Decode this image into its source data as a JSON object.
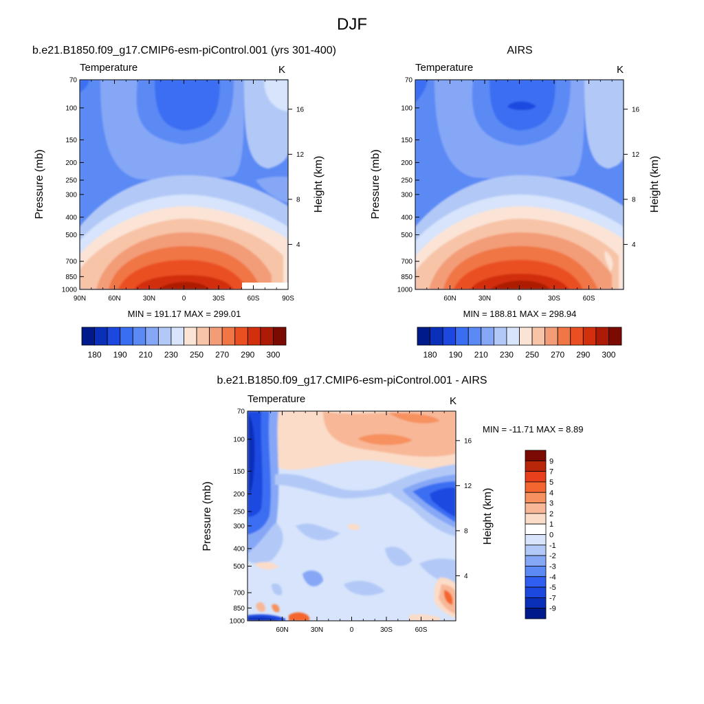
{
  "figure": {
    "title": "DJF"
  },
  "panels": [
    {
      "id": "model",
      "title": "b.e21.B1850.f09_g17.CMIP6-esm-piControl.001 (yrs 301-400)",
      "left_label": "Temperature",
      "right_label": "K",
      "ylabel_left": "Pressure (mb)",
      "ylabel_right": "Height (km)",
      "stats": "MIN = 191.17  MAX = 299.01"
    },
    {
      "id": "obs",
      "title": "AIRS",
      "left_label": "Temperature",
      "right_label": "K",
      "ylabel_left": "Pressure (mb)",
      "ylabel_right": "Height (km)",
      "stats": "MIN = 188.81  MAX = 298.94"
    },
    {
      "id": "diff",
      "title": "b.e21.B1850.f09_g17.CMIP6-esm-piControl.001 - AIRS",
      "left_label": "Temperature",
      "right_label": "K",
      "ylabel_left": "Pressure (mb)",
      "ylabel_right": "Height (km)",
      "stats": "MIN = -11.71  MAX =   8.89"
    }
  ],
  "chart_data": [
    {
      "type": "heatmap",
      "title": "b.e21.B1850.f09_g17.CMIP6-esm-piControl.001 (yrs 301-400)",
      "xlabel": "",
      "ylabel": "Pressure (mb)",
      "ylabel_right": "Height (km)",
      "x_ticks": [
        "90N",
        "60N",
        "30N",
        "0",
        "30S",
        "60S",
        "90S"
      ],
      "x_range": [
        90,
        -90
      ],
      "y_ticks": [
        70,
        100,
        150,
        200,
        250,
        300,
        400,
        500,
        700,
        850,
        1000
      ],
      "y_range": [
        70,
        1000
      ],
      "y_scale": "log",
      "height_ticks_km": [
        4,
        8,
        12,
        16
      ],
      "min": 191.17,
      "max": 299.01,
      "colorbar_levels": [
        180,
        185,
        190,
        200,
        210,
        220,
        230,
        240,
        250,
        260,
        270,
        280,
        290,
        295,
        300
      ],
      "colorbar_labels": [
        "180",
        "190",
        "210",
        "230",
        "250",
        "270",
        "290",
        "300"
      ]
    },
    {
      "type": "heatmap",
      "title": "AIRS",
      "xlabel": "",
      "ylabel": "Pressure (mb)",
      "ylabel_right": "Height (km)",
      "x_ticks": [
        "60N",
        "30N",
        "0",
        "30S",
        "60S"
      ],
      "x_range": [
        90,
        -90
      ],
      "y_ticks": [
        70,
        100,
        150,
        200,
        250,
        300,
        400,
        500,
        700,
        850,
        1000
      ],
      "y_range": [
        70,
        1000
      ],
      "y_scale": "log",
      "height_ticks_km": [
        4,
        8,
        12,
        16
      ],
      "min": 188.81,
      "max": 298.94,
      "colorbar_levels": [
        180,
        185,
        190,
        200,
        210,
        220,
        230,
        240,
        250,
        260,
        270,
        280,
        290,
        295,
        300
      ],
      "colorbar_labels": [
        "180",
        "190",
        "210",
        "230",
        "250",
        "270",
        "290",
        "300"
      ]
    },
    {
      "type": "heatmap",
      "title": "b.e21.B1850.f09_g17.CMIP6-esm-piControl.001 - AIRS",
      "xlabel": "",
      "ylabel": "Pressure (mb)",
      "ylabel_right": "Height (km)",
      "x_ticks": [
        "60N",
        "30N",
        "0",
        "30S",
        "60S"
      ],
      "x_range": [
        90,
        -90
      ],
      "y_ticks": [
        70,
        100,
        150,
        200,
        250,
        300,
        400,
        500,
        700,
        850,
        1000
      ],
      "y_range": [
        70,
        1000
      ],
      "y_scale": "log",
      "height_ticks_km": [
        4,
        8,
        12,
        16
      ],
      "min": -11.71,
      "max": 8.89,
      "colorbar_levels": [
        9,
        7,
        5,
        4,
        3,
        2,
        1,
        0,
        -1,
        -2,
        -3,
        -4,
        -5,
        -7,
        -9
      ],
      "colorbar_labels": [
        "9",
        "7",
        "5",
        "4",
        "3",
        "2",
        "1",
        "0",
        "-1",
        "-2",
        "-3",
        "-4",
        "-5",
        "-7",
        "-9"
      ]
    }
  ],
  "colors": {
    "abs_palette": [
      "#001a8c",
      "#0a2fb8",
      "#1c48e0",
      "#3a6ef2",
      "#5b8af5",
      "#86a7f6",
      "#b2c9f7",
      "#d7e4fb",
      "#fbe4d6",
      "#f7c4a8",
      "#f39c78",
      "#f07645",
      "#ea4f22",
      "#d22f0c",
      "#ad1a06",
      "#7b0a02"
    ],
    "diff_palette": [
      "#7b0a02",
      "#b8270a",
      "#e8401c",
      "#f4662f",
      "#f7915f",
      "#f8b898",
      "#fbdcc8",
      "#ffffff",
      "#d7e4fb",
      "#b2c9f7",
      "#86a7f6",
      "#5b8af5",
      "#2f5ef0",
      "#1c48e0",
      "#0a2fb8",
      "#001a8c"
    ]
  }
}
